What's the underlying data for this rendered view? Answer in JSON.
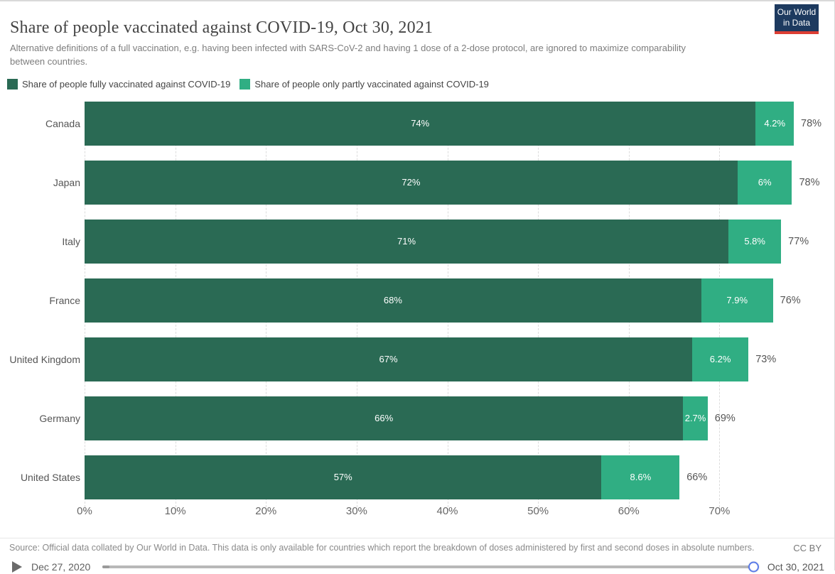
{
  "header": {
    "title": "Share of people vaccinated against COVID-19, Oct 30, 2021",
    "subtitle": "Alternative definitions of a full vaccination, e.g. having been infected with SARS-CoV-2 and having 1 dose of a 2-dose protocol, are ignored to maximize comparability between countries.",
    "logo": {
      "line1": "Our World",
      "line2": "in Data"
    }
  },
  "legend": [
    {
      "label": "Share of people fully vaccinated against COVID-19",
      "color": "#2a6a54"
    },
    {
      "label": "Share of people only partly vaccinated against COVID-19",
      "color": "#30ae83"
    }
  ],
  "chart_data": {
    "type": "bar",
    "orientation": "horizontal-stacked",
    "title": "Share of people vaccinated against COVID-19, Oct 30, 2021",
    "categories": [
      "Canada",
      "Japan",
      "Italy",
      "France",
      "United Kingdom",
      "Germany",
      "United States"
    ],
    "series": [
      {
        "name": "Share of people fully vaccinated against COVID-19",
        "color": "#2a6a54",
        "values": [
          74,
          72,
          71,
          68,
          67,
          66,
          57
        ],
        "labels": [
          "74%",
          "72%",
          "71%",
          "68%",
          "67%",
          "66%",
          "57%"
        ]
      },
      {
        "name": "Share of people only partly vaccinated against COVID-19",
        "color": "#30ae83",
        "values": [
          4.2,
          6,
          5.8,
          7.9,
          6.2,
          2.7,
          8.6
        ],
        "labels": [
          "4.2%",
          "6%",
          "5.8%",
          "7.9%",
          "6.2%",
          "2.7%",
          "8.6%"
        ]
      }
    ],
    "totals": [
      78.2,
      78,
      76.8,
      75.9,
      73.2,
      68.7,
      65.6
    ],
    "total_labels": [
      "78%",
      "78%",
      "77%",
      "76%",
      "73%",
      "69%",
      "66%"
    ],
    "xlim": [
      0,
      80
    ],
    "x_tick_values": [
      0,
      10,
      20,
      30,
      40,
      50,
      60,
      70
    ],
    "x_tick_labels": [
      "0%",
      "10%",
      "20%",
      "30%",
      "40%",
      "50%",
      "60%",
      "70%"
    ],
    "grid": "vertical-dashed"
  },
  "footer": {
    "source": "Source: Official data collated by Our World in Data. This data is only available for countries which report the breakdown of doses administered by first and second doses in absolute numbers.",
    "license": "CC BY"
  },
  "timeline": {
    "start_label": "Dec 27, 2020",
    "end_label": "Oct 30, 2021"
  },
  "colors": {
    "fully_vaccinated": "#2a6a54",
    "partly_vaccinated": "#30ae83",
    "logo_background": "#1d3a5f",
    "logo_underline": "#dc3e34",
    "slider_handle_border": "#5b7be8"
  }
}
